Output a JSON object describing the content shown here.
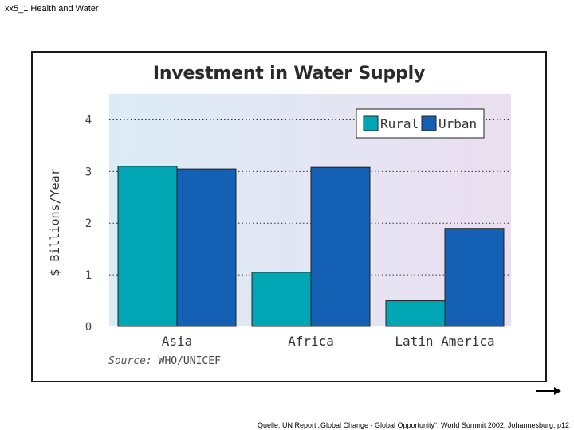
{
  "slide": {
    "header": "xx5_1 Health and Water",
    "citation": "Quelle: UN Report „Global Change - Global Opportunity“, World Summit 2002, Johannesburg,  p12"
  },
  "colors": {
    "rural": "#00a6b4",
    "urban": "#1460b4",
    "plot_bg_left": "#dcecf7",
    "plot_bg_right": "#eadff0"
  },
  "icons": {
    "next": "arrow-right-icon"
  },
  "chart_data": {
    "type": "bar",
    "title": "Investment in Water Supply",
    "xlabel": "",
    "ylabel": "$ Billions/Year",
    "ylim": [
      0,
      4.5
    ],
    "yticks": [
      0,
      1,
      2,
      3,
      4
    ],
    "grid": true,
    "legend_position": "top-right",
    "categories": [
      "Asia",
      "Africa",
      "Latin America"
    ],
    "series": [
      {
        "name": "Rural",
        "values": [
          3.1,
          1.05,
          0.5
        ]
      },
      {
        "name": "Urban",
        "values": [
          3.05,
          3.08,
          1.9
        ]
      }
    ],
    "source_prefix": "Source:",
    "source_text": "WHO/UNICEF"
  }
}
